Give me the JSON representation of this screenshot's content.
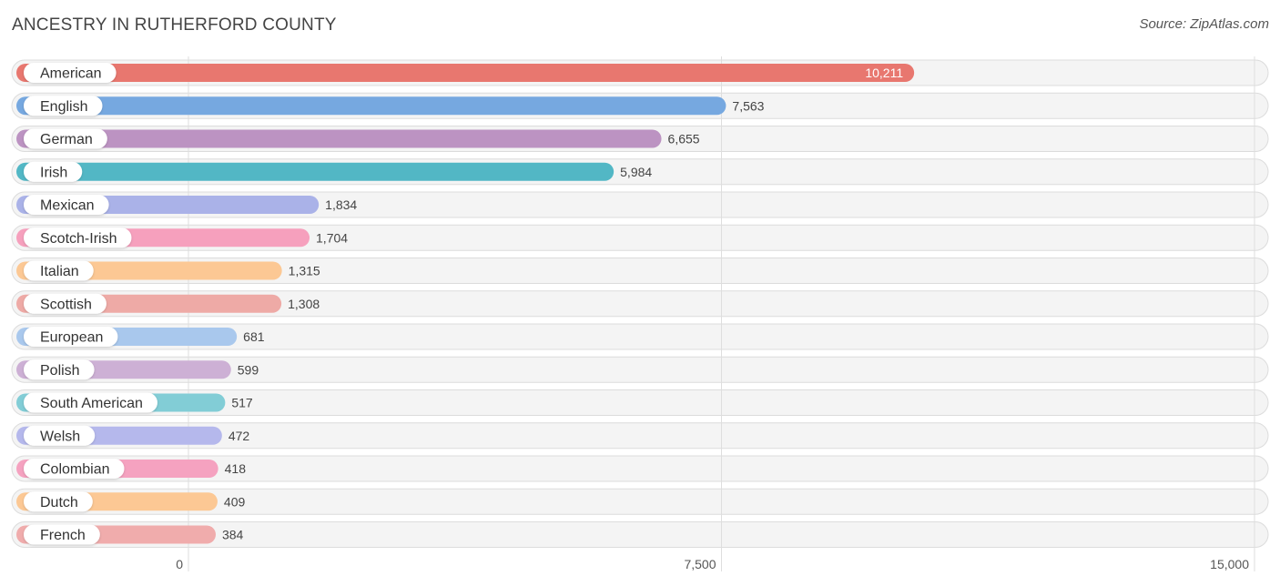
{
  "header": {
    "title": "ANCESTRY IN RUTHERFORD COUNTY",
    "source": "Source: ZipAtlas.com"
  },
  "chart_data": {
    "type": "bar",
    "orientation": "horizontal",
    "title": "ANCESTRY IN RUTHERFORD COUNTY",
    "xlabel": "",
    "ylabel": "",
    "xlim": [
      0,
      15000
    ],
    "grid": true,
    "tick_values": [
      0,
      7500,
      15000
    ],
    "tick_labels": [
      "0",
      "7,500",
      "15,000"
    ],
    "categories": [
      "American",
      "English",
      "German",
      "Irish",
      "Mexican",
      "Scotch-Irish",
      "Italian",
      "Scottish",
      "European",
      "Polish",
      "South American",
      "Welsh",
      "Colombian",
      "Dutch",
      "French"
    ],
    "values": [
      10211,
      7563,
      6655,
      5984,
      1834,
      1704,
      1315,
      1308,
      681,
      599,
      517,
      472,
      418,
      409,
      384
    ],
    "value_labels": [
      "10,211",
      "7,563",
      "6,655",
      "5,984",
      "1,834",
      "1,704",
      "1,315",
      "1,308",
      "681",
      "599",
      "517",
      "472",
      "418",
      "409",
      "384"
    ],
    "colors": [
      "#e8776f",
      "#76a8e0",
      "#bc93c2",
      "#52b7c5",
      "#aab2e8",
      "#f6a0bd",
      "#fcc894",
      "#eeaaa6",
      "#a9c8ed",
      "#cdb0d5",
      "#82cdd6",
      "#b5b8ec",
      "#f5a2c0",
      "#fcc894",
      "#f0acac"
    ]
  }
}
